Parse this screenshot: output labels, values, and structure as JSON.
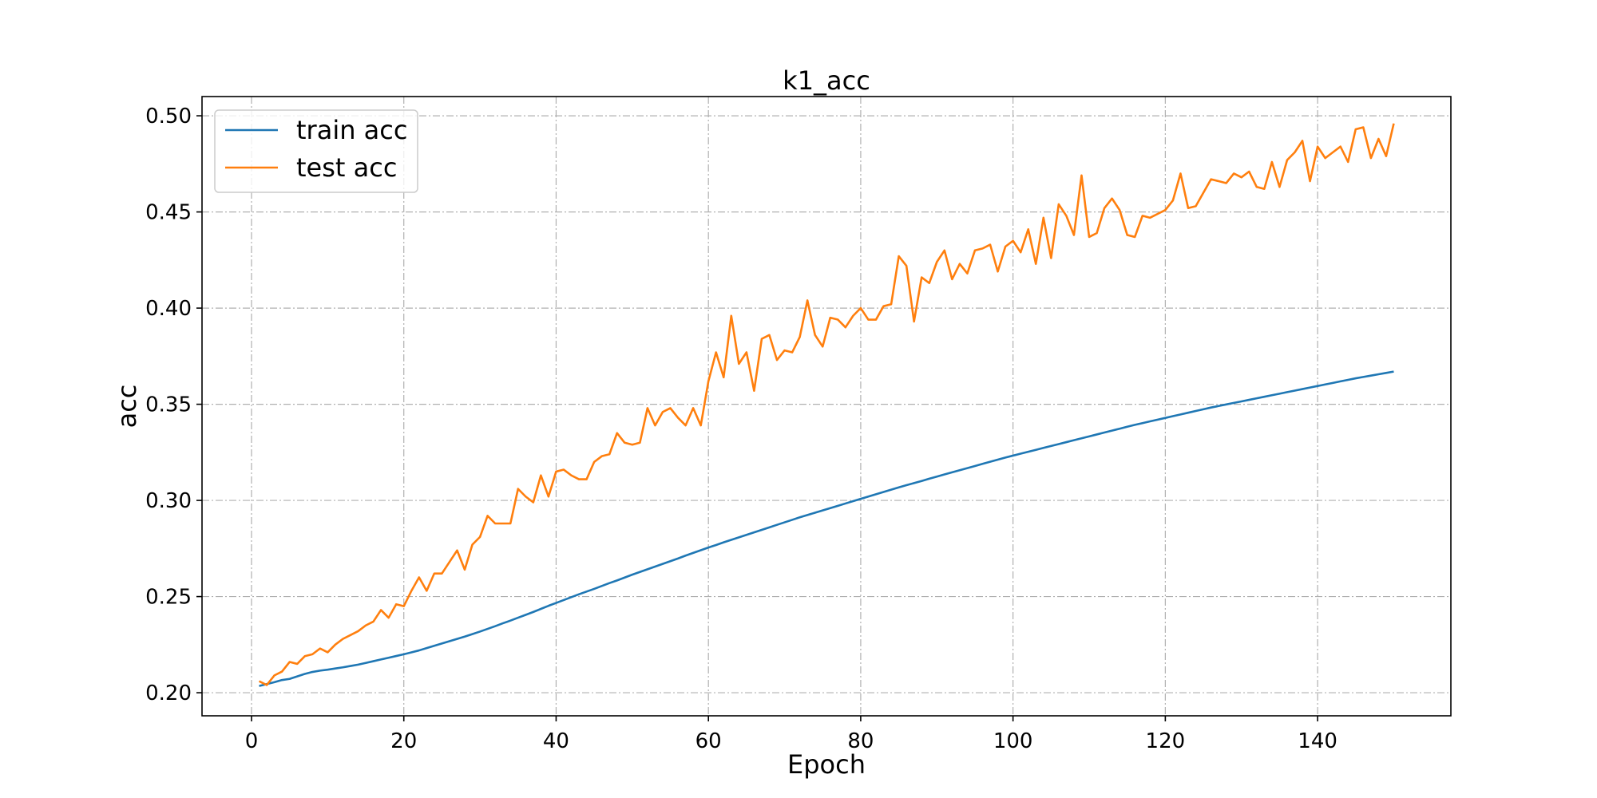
{
  "chart_data": {
    "type": "line",
    "title": "k1_acc",
    "xlabel": "Epoch",
    "ylabel": "acc",
    "xlim": [
      -6.5,
      157.5
    ],
    "ylim": [
      0.188,
      0.51
    ],
    "xticks": [
      0,
      20,
      40,
      60,
      80,
      100,
      120,
      140
    ],
    "yticks": [
      0.2,
      0.25,
      0.3,
      0.35,
      0.4,
      0.45,
      0.5
    ],
    "xtick_labels": [
      "0",
      "20",
      "40",
      "60",
      "80",
      "100",
      "120",
      "140"
    ],
    "ytick_labels": [
      "0.20",
      "0.25",
      "0.30",
      "0.35",
      "0.40",
      "0.45",
      "0.50"
    ],
    "grid": true,
    "legend_position": "upper-left",
    "series": [
      {
        "name": "train acc",
        "color": "#1f77b4",
        "x_start": 1,
        "x_step": 1,
        "values": [
          0.2035,
          0.2045,
          0.2055,
          0.2066,
          0.2072,
          0.2085,
          0.2098,
          0.2108,
          0.2115,
          0.212,
          0.2126,
          0.2132,
          0.2139,
          0.2146,
          0.2155,
          0.2164,
          0.2173,
          0.2182,
          0.2191,
          0.22,
          0.221,
          0.222,
          0.2232,
          0.2244,
          0.2256,
          0.2268,
          0.228,
          0.2292,
          0.2305,
          0.2318,
          0.2332,
          0.2346,
          0.2361,
          0.2375,
          0.239,
          0.2405,
          0.242,
          0.2436,
          0.2452,
          0.2467,
          0.2482,
          0.2497,
          0.2512,
          0.2526,
          0.254,
          0.2555,
          0.257,
          0.2584,
          0.2599,
          0.2614,
          0.2628,
          0.2642,
          0.2656,
          0.267,
          0.2684,
          0.2698,
          0.2713,
          0.2727,
          0.2741,
          0.2755,
          0.2768,
          0.2782,
          0.2795,
          0.2808,
          0.2821,
          0.2834,
          0.2847,
          0.286,
          0.2873,
          0.2886,
          0.2899,
          0.2912,
          0.2924,
          0.2936,
          0.2948,
          0.296,
          0.2972,
          0.2984,
          0.2996,
          0.3008,
          0.302,
          0.3032,
          0.3044,
          0.3056,
          0.3068,
          0.3079,
          0.309,
          0.3101,
          0.3113,
          0.3124,
          0.3135,
          0.3146,
          0.3157,
          0.3168,
          0.3179,
          0.319,
          0.3201,
          0.3212,
          0.3223,
          0.3233,
          0.3243,
          0.3253,
          0.3263,
          0.3273,
          0.3283,
          0.3293,
          0.3303,
          0.3313,
          0.3323,
          0.3333,
          0.3343,
          0.3353,
          0.3363,
          0.3373,
          0.3383,
          0.3393,
          0.3402,
          0.3411,
          0.342,
          0.3429,
          0.3438,
          0.3447,
          0.3456,
          0.3465,
          0.3474,
          0.3483,
          0.3491,
          0.3499,
          0.3507,
          0.3515,
          0.3523,
          0.3531,
          0.3539,
          0.3547,
          0.3555,
          0.3563,
          0.3571,
          0.3579,
          0.3587,
          0.3595,
          0.3603,
          0.3611,
          0.3619,
          0.3627,
          0.3635,
          0.3642,
          0.3649,
          0.3656,
          0.3663,
          0.367
        ]
      },
      {
        "name": "test acc",
        "color": "#ff7f0e",
        "x_start": 1,
        "x_step": 1,
        "values": [
          0.206,
          0.204,
          0.209,
          0.211,
          0.216,
          0.215,
          0.219,
          0.22,
          0.223,
          0.221,
          0.225,
          0.228,
          0.23,
          0.232,
          0.235,
          0.237,
          0.243,
          0.239,
          0.246,
          0.245,
          0.253,
          0.26,
          0.253,
          0.262,
          0.262,
          0.268,
          0.274,
          0.264,
          0.277,
          0.281,
          0.292,
          0.288,
          0.288,
          0.288,
          0.306,
          0.302,
          0.299,
          0.313,
          0.302,
          0.315,
          0.316,
          0.313,
          0.311,
          0.311,
          0.32,
          0.323,
          0.324,
          0.335,
          0.33,
          0.329,
          0.33,
          0.348,
          0.339,
          0.346,
          0.348,
          0.343,
          0.339,
          0.348,
          0.339,
          0.362,
          0.377,
          0.364,
          0.396,
          0.371,
          0.377,
          0.357,
          0.384,
          0.386,
          0.373,
          0.378,
          0.377,
          0.385,
          0.404,
          0.386,
          0.38,
          0.395,
          0.394,
          0.39,
          0.396,
          0.4,
          0.394,
          0.394,
          0.401,
          0.402,
          0.427,
          0.422,
          0.393,
          0.416,
          0.413,
          0.424,
          0.43,
          0.415,
          0.423,
          0.418,
          0.43,
          0.431,
          0.433,
          0.419,
          0.432,
          0.435,
          0.429,
          0.441,
          0.423,
          0.447,
          0.426,
          0.454,
          0.448,
          0.438,
          0.469,
          0.437,
          0.439,
          0.452,
          0.457,
          0.451,
          0.438,
          0.437,
          0.448,
          0.447,
          0.449,
          0.451,
          0.456,
          0.47,
          0.452,
          0.453,
          0.46,
          0.467,
          0.466,
          0.465,
          0.47,
          0.468,
          0.471,
          0.463,
          0.462,
          0.476,
          0.463,
          0.477,
          0.481,
          0.487,
          0.466,
          0.484,
          0.478,
          0.481,
          0.484,
          0.476,
          0.493,
          0.494,
          0.478,
          0.488,
          0.479,
          0.496
        ]
      }
    ]
  }
}
